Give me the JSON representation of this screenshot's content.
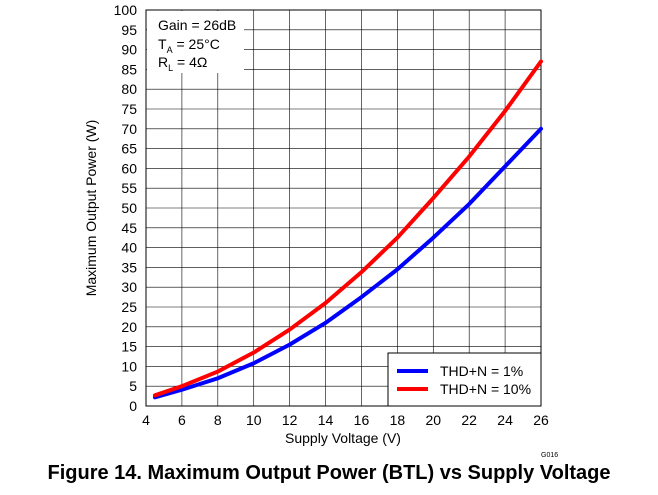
{
  "chart_data": {
    "type": "line",
    "title": "Figure 14. Maximum Output Power (BTL) vs Supply Voltage",
    "xlabel": "Supply Voltage (V)",
    "ylabel": "Maximum Output Power (W)",
    "xlim": [
      4,
      26
    ],
    "ylim": [
      0,
      100
    ],
    "xticks": [
      4,
      6,
      8,
      10,
      12,
      14,
      16,
      18,
      20,
      22,
      24,
      26
    ],
    "yticks": [
      0,
      5,
      10,
      15,
      20,
      25,
      30,
      35,
      40,
      45,
      50,
      55,
      60,
      65,
      70,
      75,
      80,
      85,
      90,
      95,
      100
    ],
    "grid": true,
    "legend_position": "bottom-right",
    "annotation": {
      "gain": "Gain = 26dB",
      "ta_main": "T",
      "ta_sub": "A",
      "ta_rest": " = 25°C",
      "rl_main": "R",
      "rl_sub": "L",
      "rl_rest": " = 4Ω"
    },
    "series": [
      {
        "name": "THD+N = 1%",
        "color": "#0000ff",
        "x": [
          4.5,
          6,
          8,
          10,
          12,
          14,
          16,
          18,
          20,
          22,
          24,
          26
        ],
        "values": [
          2.2,
          4.1,
          7.0,
          10.8,
          15.5,
          21.0,
          27.5,
          34.5,
          42.5,
          51.0,
          60.5,
          70.0
        ]
      },
      {
        "name": "THD+N = 10%",
        "color": "#ff0000",
        "x": [
          4.5,
          6,
          8,
          10,
          12,
          14,
          16,
          18,
          20,
          22,
          24,
          26
        ],
        "values": [
          2.7,
          5.0,
          8.7,
          13.5,
          19.3,
          26.0,
          33.8,
          42.5,
          52.5,
          63.0,
          74.5,
          87.0
        ]
      }
    ],
    "figure_code": "G016"
  }
}
